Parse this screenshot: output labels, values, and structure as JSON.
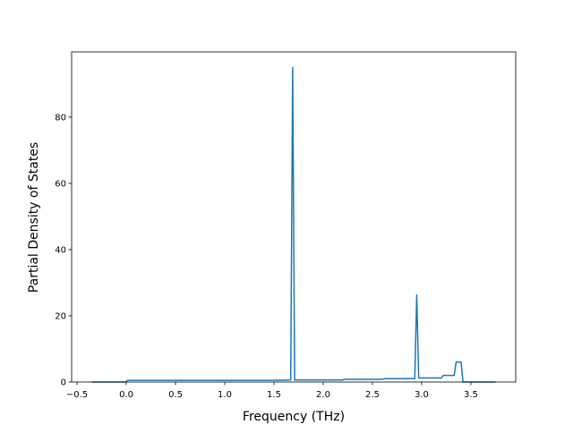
{
  "chart_data": {
    "type": "line",
    "x_label": "Frequency (THz)",
    "y_label": "Partial Density of States",
    "x": [
      -0.35,
      0.0,
      0.01,
      0.5,
      1.0,
      1.5,
      1.67,
      1.69,
      1.71,
      2.2,
      2.21,
      2.6,
      2.62,
      2.93,
      2.95,
      2.97,
      3.2,
      3.22,
      3.33,
      3.35,
      3.4,
      3.42,
      3.75
    ],
    "series": [
      {
        "name": "pdos",
        "color": "#1f77b4",
        "values": [
          0,
          0,
          0.5,
          0.5,
          0.5,
          0.5,
          0.6,
          95,
          0.6,
          0.6,
          0.8,
          0.8,
          1.0,
          1.0,
          26.3,
          1.2,
          1.2,
          2.0,
          2.0,
          6.0,
          6.0,
          0,
          0
        ]
      }
    ],
    "xlim": [
      -0.555,
      3.955
    ],
    "ylim": [
      0,
      99.7
    ],
    "xticks": [
      {
        "value": -0.5,
        "label": "−0.5"
      },
      {
        "value": 0,
        "label": "0.0"
      },
      0.5,
      {
        "value": 1,
        "label": "1.0"
      },
      1.5,
      {
        "value": 2,
        "label": "2.0"
      },
      2.5,
      {
        "value": 3,
        "label": "3.0"
      },
      3.5
    ],
    "yticks": [
      0,
      20,
      40,
      60,
      80
    ]
  }
}
